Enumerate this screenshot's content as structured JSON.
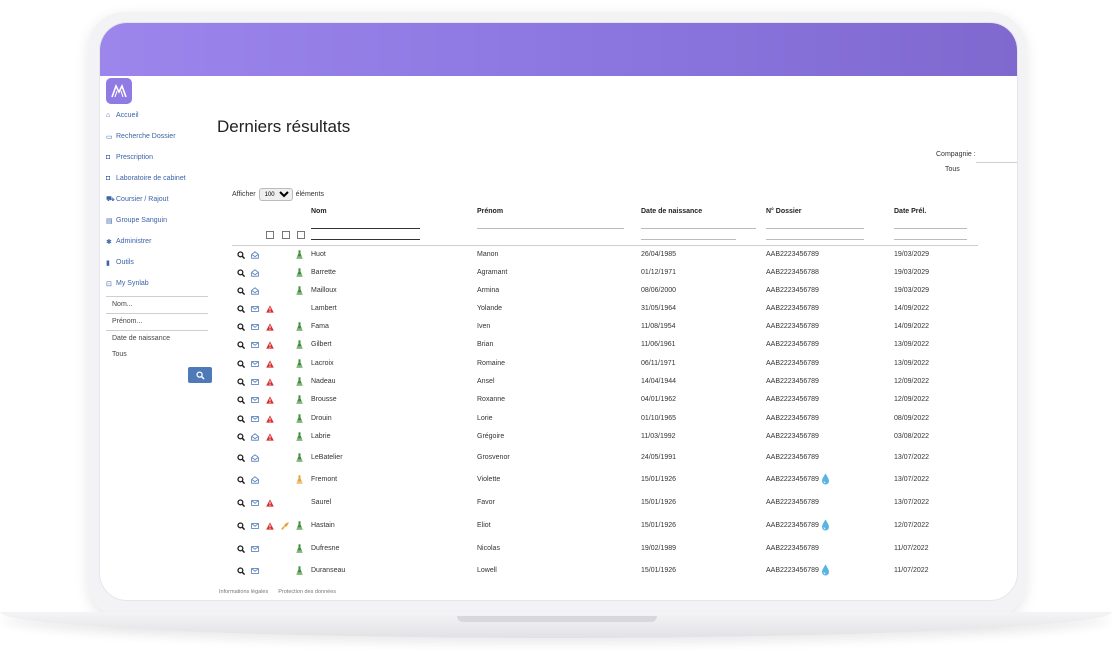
{
  "nav": [
    {
      "label": "Accueil",
      "icon": "home-icon"
    },
    {
      "label": "Recherche Dossier",
      "icon": "folder-icon"
    },
    {
      "label": "Prescription",
      "icon": "camera-icon"
    },
    {
      "label": "Laboratoire de cabinet",
      "icon": "camera-icon"
    },
    {
      "label": "Coursier / Rajout",
      "icon": "truck-icon"
    },
    {
      "label": "Groupe Sanguin",
      "icon": "id-card-icon"
    },
    {
      "label": "Administrer",
      "icon": "gear-icon"
    },
    {
      "label": "Outils",
      "icon": "chart-icon"
    },
    {
      "label": "My Synlab",
      "icon": "cart-icon"
    }
  ],
  "search_panel": {
    "nom_placeholder": "Nom...",
    "prenom_placeholder": "Prénom...",
    "date_label": "Date de naissance",
    "tous_label": "Tous"
  },
  "page": {
    "title": "Derniers résultats"
  },
  "compagnie": {
    "label": "Compagnie :",
    "value": "Tous"
  },
  "afficher": {
    "prefix": "Afficher",
    "value": "100",
    "suffix": "éléments"
  },
  "columns": {
    "nom": "Nom",
    "prenom": "Prénom",
    "date": "Date de naissance",
    "dossier": "N° Dossier",
    "date_prel": "Date Prél."
  },
  "colors": {
    "accent": "#8b76e0",
    "link": "#3a63a8",
    "alert": "#d32f2f",
    "flask_green": "#3f8f3a",
    "flask_orange": "#e7a339",
    "drop": "#58b4e0"
  },
  "rows": [
    {
      "nom": "Huot",
      "prenom": "Manon",
      "naissance": "26/04/1985",
      "dossier": "AAB2223456789",
      "date_prel": "19/03/2029",
      "mail": "open",
      "alert": false,
      "rocket": false,
      "flask": "green",
      "drop": false
    },
    {
      "nom": "Barrette",
      "prenom": "Agramant",
      "naissance": "01/12/1971",
      "dossier": "AAB2223456788",
      "date_prel": "19/03/2029",
      "mail": "open",
      "alert": false,
      "rocket": false,
      "flask": "green",
      "drop": false
    },
    {
      "nom": "Mailloux",
      "prenom": "Armina",
      "naissance": "08/06/2000",
      "dossier": "AAB2223456789",
      "date_prel": "19/03/2029",
      "mail": "open",
      "alert": false,
      "rocket": false,
      "flask": "green",
      "drop": false
    },
    {
      "nom": "Lambert",
      "prenom": "Yolande",
      "naissance": "31/05/1964",
      "dossier": "AAB2223456789",
      "date_prel": "14/09/2022",
      "mail": "closed",
      "alert": true,
      "rocket": false,
      "flask": "none",
      "drop": false
    },
    {
      "nom": "Fama",
      "prenom": "Iven",
      "naissance": "11/08/1954",
      "dossier": "AAB2223456789",
      "date_prel": "14/09/2022",
      "mail": "closed",
      "alert": true,
      "rocket": false,
      "flask": "green",
      "drop": false
    },
    {
      "nom": "Gilbert",
      "prenom": "Brian",
      "naissance": "11/06/1961",
      "dossier": "AAB2223456789",
      "date_prel": "13/09/2022",
      "mail": "closed",
      "alert": true,
      "rocket": false,
      "flask": "green",
      "drop": false
    },
    {
      "nom": "Lacroix",
      "prenom": "Romaine",
      "naissance": "06/11/1971",
      "dossier": "AAB2223456789",
      "date_prel": "13/09/2022",
      "mail": "closed",
      "alert": true,
      "rocket": false,
      "flask": "green",
      "drop": false
    },
    {
      "nom": "Nadeau",
      "prenom": "Ansel",
      "naissance": "14/04/1944",
      "dossier": "AAB2223456789",
      "date_prel": "12/09/2022",
      "mail": "closed",
      "alert": true,
      "rocket": false,
      "flask": "green",
      "drop": false
    },
    {
      "nom": "Brousse",
      "prenom": "Roxanne",
      "naissance": "04/01/1962",
      "dossier": "AAB2223456789",
      "date_prel": "12/09/2022",
      "mail": "closed",
      "alert": true,
      "rocket": false,
      "flask": "green",
      "drop": false
    },
    {
      "nom": "Drouin",
      "prenom": "Lorie",
      "naissance": "01/10/1965",
      "dossier": "AAB2223456789",
      "date_prel": "08/09/2022",
      "mail": "closed",
      "alert": true,
      "rocket": false,
      "flask": "green",
      "drop": false
    },
    {
      "nom": "Labrie",
      "prenom": "Grégoire",
      "naissance": "11/03/1992",
      "dossier": "AAB2223456789",
      "date_prel": "03/08/2022",
      "mail": "open",
      "alert": true,
      "rocket": false,
      "flask": "green",
      "drop": false
    },
    {
      "nom": "LeBatelier",
      "prenom": "Grosvenor",
      "naissance": "24/05/1991",
      "dossier": "AAB2223456789",
      "date_prel": "13/07/2022",
      "mail": "open",
      "alert": false,
      "rocket": false,
      "flask": "green",
      "drop": false
    },
    {
      "nom": "Fremont",
      "prenom": "Violette",
      "naissance": "15/01/1926",
      "dossier": "AAB2223456789",
      "date_prel": "13/07/2022",
      "mail": "open",
      "alert": false,
      "rocket": false,
      "flask": "orange",
      "drop": true
    },
    {
      "nom": "Saurel",
      "prenom": "Favor",
      "naissance": "15/01/1926",
      "dossier": "AAB2223456789",
      "date_prel": "13/07/2022",
      "mail": "closed",
      "alert": true,
      "rocket": false,
      "flask": "none",
      "drop": false
    },
    {
      "nom": "Hastain",
      "prenom": "Eliot",
      "naissance": "15/01/1926",
      "dossier": "AAB2223456789",
      "date_prel": "12/07/2022",
      "mail": "closed",
      "alert": true,
      "rocket": true,
      "flask": "green",
      "drop": true
    },
    {
      "nom": "Dufresne",
      "prenom": "Nicolas",
      "naissance": "19/02/1989",
      "dossier": "AAB2223456789",
      "date_prel": "11/07/2022",
      "mail": "closed",
      "alert": false,
      "rocket": false,
      "flask": "green",
      "drop": false
    },
    {
      "nom": "Duranseau",
      "prenom": "Lowell",
      "naissance": "15/01/1926",
      "dossier": "AAB2223456789",
      "date_prel": "11/07/2022",
      "mail": "closed",
      "alert": false,
      "rocket": false,
      "flask": "green",
      "drop": true
    }
  ],
  "footer": {
    "legal": "Informations légales",
    "privacy": "Protection des données"
  }
}
